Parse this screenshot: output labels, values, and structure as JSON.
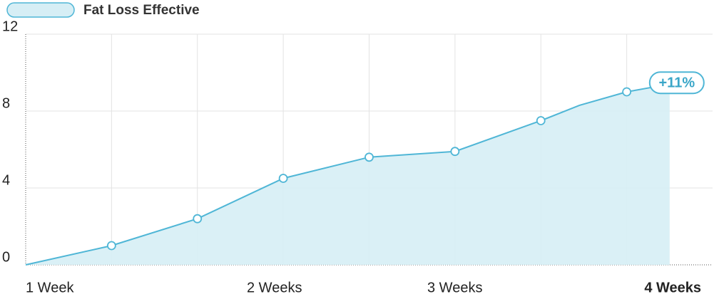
{
  "chart_data": {
    "type": "area",
    "legend": "Fat Loss Effective",
    "categories": [
      "1 Week",
      "2 Weeks",
      "3 Weeks",
      "4 Weeks"
    ],
    "series": [
      {
        "name": "Fat Loss Effective",
        "color": "#4fb6d6",
        "x": [
          0,
          1,
          2,
          3,
          4,
          5,
          6,
          6.45,
          7,
          7.5
        ],
        "values": [
          0,
          1,
          2.4,
          4.5,
          5.6,
          5.9,
          7.5,
          8.3,
          9.0,
          9.4
        ]
      }
    ],
    "annotation": "+11%",
    "xlim": [
      0,
      8
    ],
    "xticks": [
      1,
      2,
      3,
      4,
      5,
      6,
      7
    ],
    "ylim": [
      0,
      12
    ],
    "yticks": [
      0,
      4,
      8,
      12
    ],
    "grid": true
  }
}
